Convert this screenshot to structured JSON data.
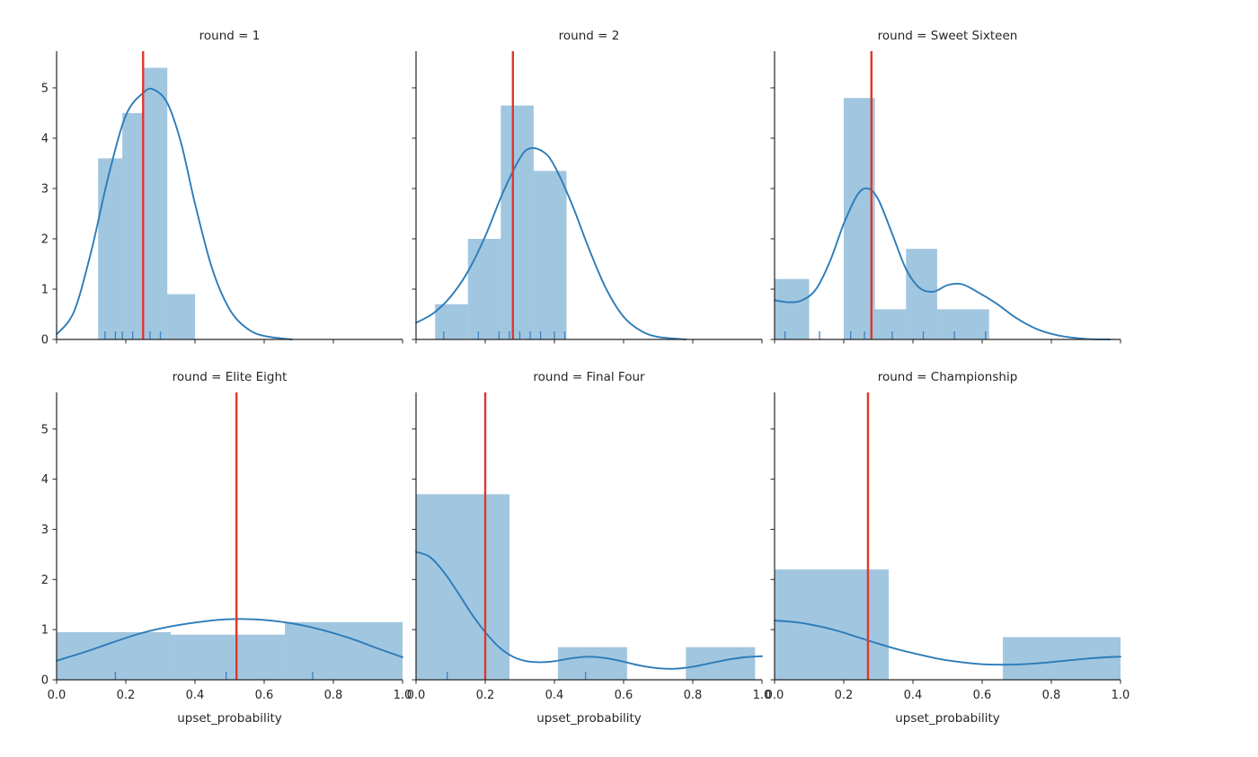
{
  "figure": {
    "background": "#ffffff",
    "text_color": "#262626",
    "colors": {
      "bar_fill": "#1f77b4",
      "bar_opacity": 0.42,
      "kde_line": "#2d7cb8",
      "vline": "#e0372b",
      "rug": "#3c82c0",
      "spine": "#262626"
    },
    "xlabel": "upset_probability",
    "xlim": [
      0,
      1
    ],
    "ylim": [
      0,
      5.73
    ],
    "x_ticks": [
      0,
      0.2,
      0.4,
      0.6,
      0.8,
      1.0
    ],
    "x_tick_labels": [
      "0.0",
      "0.2",
      "0.4",
      "0.6",
      "0.8",
      "1.0"
    ],
    "y_ticks": [
      0,
      1,
      2,
      3,
      4,
      5
    ],
    "grid": "off",
    "layout": "facet grid 2 rows x 3 cols, shared x and y axes, y labels on left column only, x labels on bottom row only"
  },
  "chart_data": [
    {
      "type": "histogram+kde",
      "title": "round = 1",
      "bars": [
        [
          0.12,
          0.19,
          3.6
        ],
        [
          0.19,
          0.25,
          4.5
        ],
        [
          0.25,
          0.32,
          5.4
        ],
        [
          0.32,
          0.4,
          0.9
        ]
      ],
      "kde": [
        [
          0.0,
          0.1
        ],
        [
          0.05,
          0.55
        ],
        [
          0.1,
          1.75
        ],
        [
          0.15,
          3.25
        ],
        [
          0.2,
          4.45
        ],
        [
          0.25,
          4.9
        ],
        [
          0.28,
          4.97
        ],
        [
          0.32,
          4.7
        ],
        [
          0.36,
          3.9
        ],
        [
          0.4,
          2.7
        ],
        [
          0.45,
          1.4
        ],
        [
          0.5,
          0.6
        ],
        [
          0.55,
          0.22
        ],
        [
          0.6,
          0.07
        ],
        [
          0.68,
          0.0
        ]
      ],
      "vline": 0.25,
      "rug": [
        0.14,
        0.17,
        0.19,
        0.22,
        0.25,
        0.27,
        0.3
      ]
    },
    {
      "type": "histogram+kde",
      "title": "round = 2",
      "bars": [
        [
          0.055,
          0.15,
          0.7
        ],
        [
          0.15,
          0.245,
          2.0
        ],
        [
          0.245,
          0.34,
          4.65
        ],
        [
          0.34,
          0.435,
          3.35
        ]
      ],
      "kde": [
        [
          0.0,
          0.33
        ],
        [
          0.05,
          0.52
        ],
        [
          0.1,
          0.85
        ],
        [
          0.15,
          1.35
        ],
        [
          0.2,
          2.05
        ],
        [
          0.25,
          2.9
        ],
        [
          0.3,
          3.6
        ],
        [
          0.33,
          3.8
        ],
        [
          0.37,
          3.72
        ],
        [
          0.4,
          3.45
        ],
        [
          0.45,
          2.7
        ],
        [
          0.5,
          1.8
        ],
        [
          0.55,
          1.0
        ],
        [
          0.6,
          0.45
        ],
        [
          0.65,
          0.17
        ],
        [
          0.7,
          0.05
        ],
        [
          0.78,
          0.0
        ]
      ],
      "vline": 0.28,
      "rug": [
        0.08,
        0.18,
        0.24,
        0.27,
        0.3,
        0.33,
        0.36,
        0.4,
        0.43
      ]
    },
    {
      "type": "histogram+kde",
      "title": "round = Sweet Sixteen",
      "bars": [
        [
          0.0,
          0.1,
          1.2
        ],
        [
          0.2,
          0.29,
          4.8
        ],
        [
          0.29,
          0.38,
          0.6
        ],
        [
          0.38,
          0.47,
          1.8
        ],
        [
          0.47,
          0.62,
          0.6
        ]
      ],
      "kde": [
        [
          0.0,
          0.78
        ],
        [
          0.04,
          0.74
        ],
        [
          0.08,
          0.78
        ],
        [
          0.12,
          1.0
        ],
        [
          0.16,
          1.55
        ],
        [
          0.2,
          2.3
        ],
        [
          0.24,
          2.88
        ],
        [
          0.27,
          3.0
        ],
        [
          0.3,
          2.78
        ],
        [
          0.34,
          2.1
        ],
        [
          0.38,
          1.4
        ],
        [
          0.42,
          1.02
        ],
        [
          0.46,
          0.95
        ],
        [
          0.5,
          1.08
        ],
        [
          0.54,
          1.1
        ],
        [
          0.58,
          0.97
        ],
        [
          0.64,
          0.72
        ],
        [
          0.7,
          0.42
        ],
        [
          0.76,
          0.2
        ],
        [
          0.82,
          0.08
        ],
        [
          0.9,
          0.01
        ],
        [
          0.97,
          0.0
        ]
      ],
      "vline": 0.28,
      "rug": [
        0.03,
        0.13,
        0.22,
        0.26,
        0.34,
        0.43,
        0.52,
        0.61
      ]
    },
    {
      "type": "histogram+kde",
      "title": "round = Elite Eight",
      "bars": [
        [
          0.0,
          0.33,
          0.95
        ],
        [
          0.33,
          0.66,
          0.9
        ],
        [
          0.66,
          1.0,
          1.15
        ]
      ],
      "kde": [
        [
          0.0,
          0.38
        ],
        [
          0.08,
          0.55
        ],
        [
          0.16,
          0.74
        ],
        [
          0.24,
          0.92
        ],
        [
          0.32,
          1.05
        ],
        [
          0.4,
          1.14
        ],
        [
          0.48,
          1.2
        ],
        [
          0.55,
          1.21
        ],
        [
          0.62,
          1.18
        ],
        [
          0.7,
          1.1
        ],
        [
          0.78,
          0.97
        ],
        [
          0.86,
          0.8
        ],
        [
          0.93,
          0.62
        ],
        [
          1.0,
          0.45
        ]
      ],
      "vline": 0.52,
      "rug": [
        0.17,
        0.49,
        0.74
      ]
    },
    {
      "type": "histogram+kde",
      "title": "round = Final Four",
      "bars": [
        [
          0.0,
          0.27,
          3.7
        ],
        [
          0.41,
          0.61,
          0.65
        ],
        [
          0.78,
          0.98,
          0.65
        ]
      ],
      "kde": [
        [
          0.0,
          2.55
        ],
        [
          0.04,
          2.45
        ],
        [
          0.08,
          2.15
        ],
        [
          0.12,
          1.75
        ],
        [
          0.16,
          1.32
        ],
        [
          0.2,
          0.95
        ],
        [
          0.24,
          0.65
        ],
        [
          0.28,
          0.46
        ],
        [
          0.32,
          0.37
        ],
        [
          0.36,
          0.35
        ],
        [
          0.4,
          0.37
        ],
        [
          0.45,
          0.43
        ],
        [
          0.5,
          0.46
        ],
        [
          0.55,
          0.43
        ],
        [
          0.6,
          0.36
        ],
        [
          0.65,
          0.28
        ],
        [
          0.7,
          0.23
        ],
        [
          0.75,
          0.22
        ],
        [
          0.8,
          0.26
        ],
        [
          0.85,
          0.33
        ],
        [
          0.9,
          0.4
        ],
        [
          0.95,
          0.45
        ],
        [
          1.0,
          0.47
        ]
      ],
      "vline": 0.2,
      "rug": [
        0.09,
        0.49
      ]
    },
    {
      "type": "histogram+kde",
      "title": "round = Championship",
      "bars": [
        [
          0.0,
          0.33,
          2.2
        ],
        [
          0.66,
          1.0,
          0.85
        ]
      ],
      "kde": [
        [
          0.0,
          1.18
        ],
        [
          0.06,
          1.15
        ],
        [
          0.12,
          1.08
        ],
        [
          0.18,
          0.98
        ],
        [
          0.24,
          0.85
        ],
        [
          0.3,
          0.72
        ],
        [
          0.36,
          0.6
        ],
        [
          0.42,
          0.5
        ],
        [
          0.48,
          0.41
        ],
        [
          0.54,
          0.35
        ],
        [
          0.6,
          0.31
        ],
        [
          0.66,
          0.3
        ],
        [
          0.72,
          0.31
        ],
        [
          0.78,
          0.34
        ],
        [
          0.84,
          0.38
        ],
        [
          0.9,
          0.42
        ],
        [
          0.96,
          0.45
        ],
        [
          1.0,
          0.46
        ]
      ],
      "vline": 0.27,
      "rug": []
    }
  ]
}
